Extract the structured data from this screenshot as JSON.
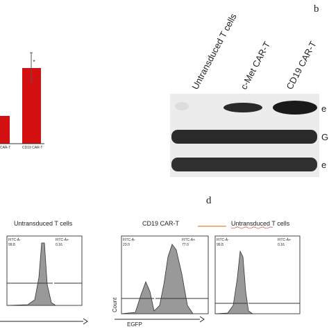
{
  "panel_b": {
    "label": "b",
    "columns": [
      "Untransduced T cells",
      "c-Met CAR-T",
      "CD19 CAR-T"
    ],
    "row_labels": [
      "e",
      "G",
      "e"
    ]
  },
  "panel_a": {
    "bar_labels": [
      "CAR-T",
      "CD19 CAR-T"
    ],
    "significance": "*"
  },
  "panel_d": {
    "label": "d",
    "plots": [
      {
        "title": "Untransduced T cells",
        "neg_label": "FITC-A-",
        "neg_value": "99.8",
        "pos_label": "FITC-A+",
        "pos_value": "0.16"
      },
      {
        "title": "CD19 CAR-T",
        "neg_label": "FITC-A-",
        "neg_value": "23.0",
        "pos_label": "FITC-A+",
        "pos_value": "77.0",
        "y_label": "Count",
        "x_label": "EGFP"
      },
      {
        "title": "Untransduced T cells",
        "neg_label": "FITC-A-",
        "neg_value": "99.8",
        "pos_label": "FITC-A+",
        "pos_value": "0.16"
      }
    ]
  }
}
